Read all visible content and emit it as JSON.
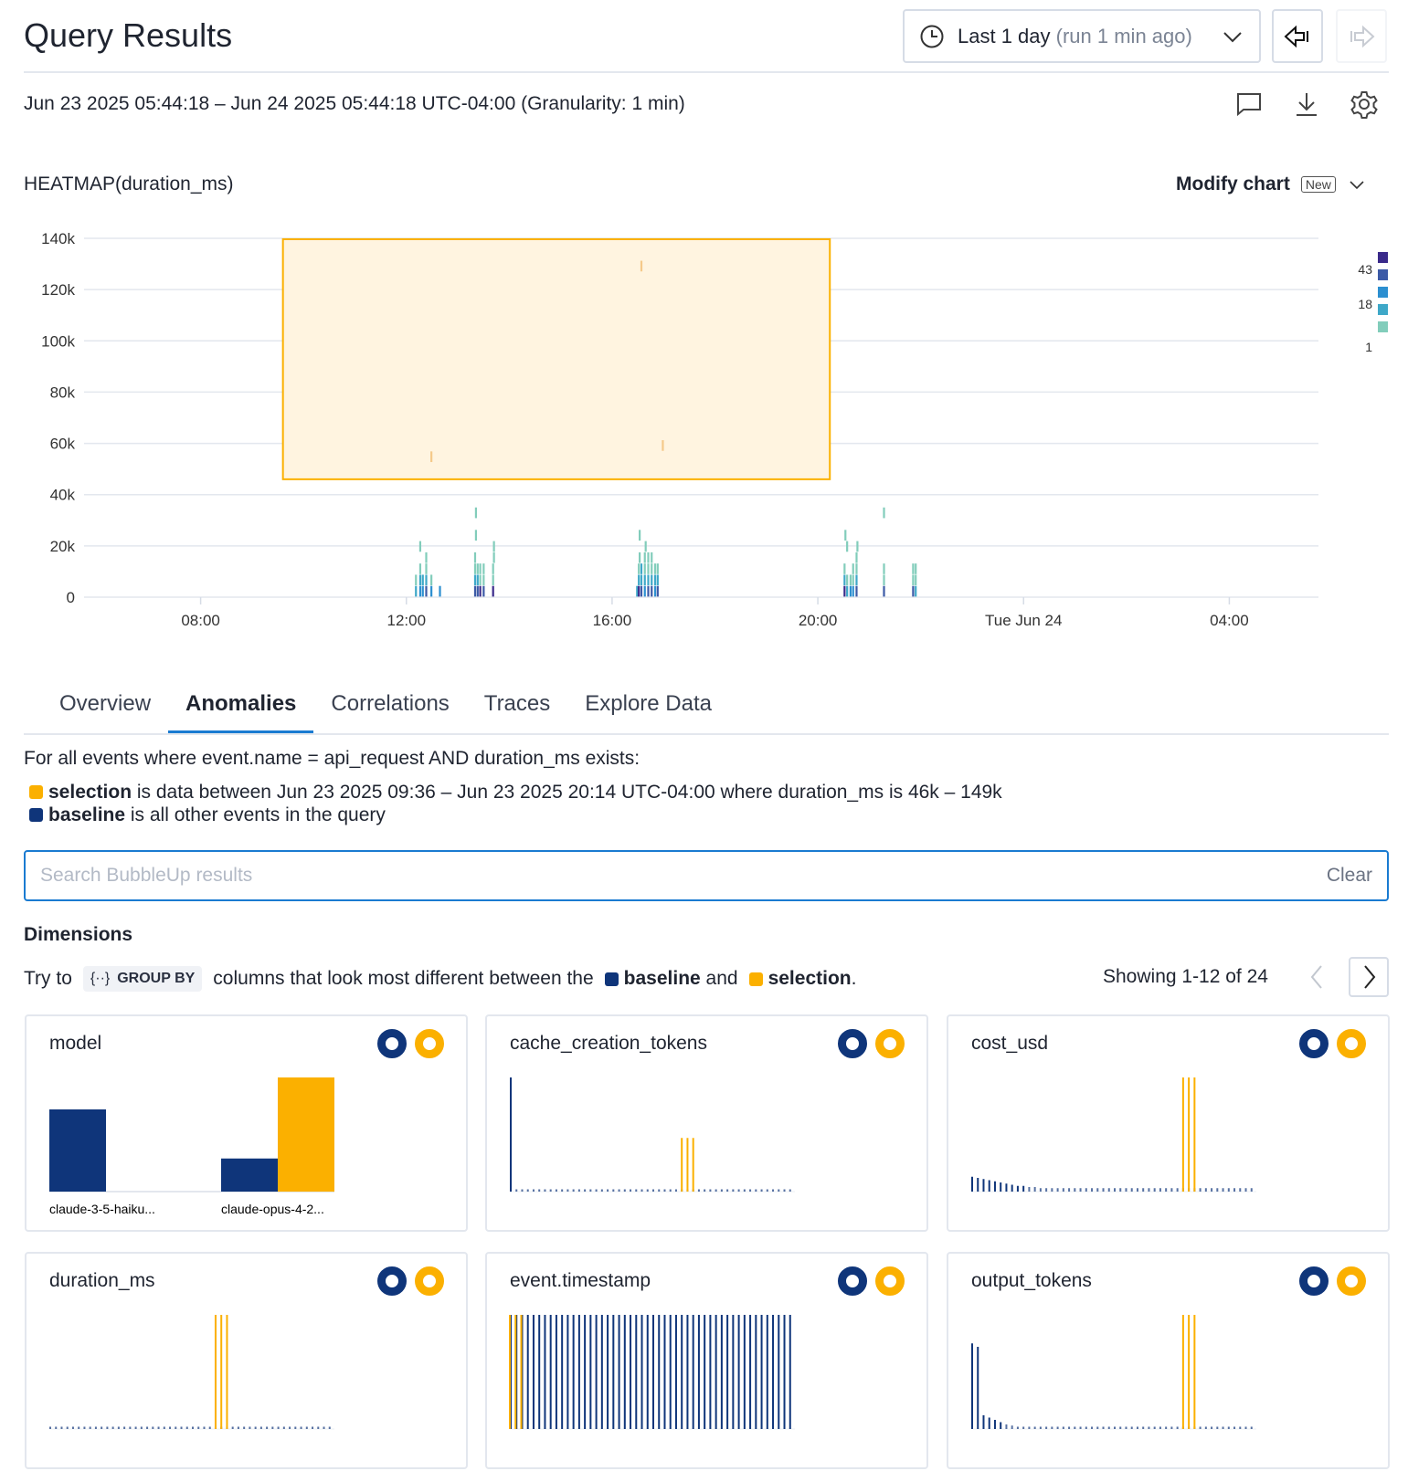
{
  "header": {
    "title": "Query Results",
    "time_range_label": "Last 1 day",
    "time_range_note": "(run 1 min ago)",
    "back_icon": "arrow-left-bar-icon",
    "forward_icon": "arrow-right-bar-icon"
  },
  "subheader": {
    "range_text": "Jun 23 2025 05:44:18 – Jun 24 2025 05:44:18 UTC-04:00 (Granularity: 1 min)",
    "icons": [
      "comment-icon",
      "download-icon",
      "gear-icon"
    ]
  },
  "chart_header": {
    "title": "HEATMAP(duration_ms)",
    "modify_label": "Modify chart",
    "new_badge": "New"
  },
  "colors": {
    "baseline": "#0f357a",
    "selection": "#fbb000",
    "accent": "#1a7bd1",
    "selection_fill": "#fff4e0"
  },
  "chart_data": {
    "type": "heatmap",
    "title": "HEATMAP(duration_ms)",
    "x_range": [
      "Jun 23 05:44",
      "Jun 24 05:44"
    ],
    "x_ticks": [
      {
        "t": "08:00",
        "label": "08:00"
      },
      {
        "t": "12:00",
        "label": "12:00"
      },
      {
        "t": "16:00",
        "label": "16:00"
      },
      {
        "t": "20:00",
        "label": "20:00"
      },
      {
        "t": "24:00",
        "label": "Tue Jun 24"
      },
      {
        "t": "28:00",
        "label": "04:00"
      }
    ],
    "y_range": [
      0,
      140000
    ],
    "y_ticks": [
      {
        "v": 0,
        "label": "0"
      },
      {
        "v": 20000,
        "label": "20k"
      },
      {
        "v": 40000,
        "label": "40k"
      },
      {
        "v": 60000,
        "label": "60k"
      },
      {
        "v": 80000,
        "label": "80k"
      },
      {
        "v": 100000,
        "label": "100k"
      },
      {
        "v": 120000,
        "label": "120k"
      },
      {
        "v": 140000,
        "label": "140k"
      }
    ],
    "grid": true,
    "bucket_ms": 4375,
    "legend": {
      "placement": "right",
      "labels": [
        "43",
        "18",
        "1"
      ],
      "colors": [
        "#3a2a8a",
        "#3c5aa6",
        "#2c8fd0",
        "#3ea8c8",
        "#82cdbb"
      ]
    },
    "selection": {
      "from": "09:36",
      "to": "20:14",
      "y_from": 46000,
      "y_to": 149000
    },
    "cells": [
      [
        "12:10",
        0,
        3
      ],
      [
        "12:10",
        1,
        1
      ],
      [
        "12:15",
        0,
        14
      ],
      [
        "12:15",
        1,
        4
      ],
      [
        "12:15",
        2,
        2
      ],
      [
        "12:15",
        4,
        1
      ],
      [
        "12:18",
        0,
        9
      ],
      [
        "12:18",
        1,
        3
      ],
      [
        "12:22",
        0,
        20
      ],
      [
        "12:22",
        1,
        4
      ],
      [
        "12:22",
        2,
        2
      ],
      [
        "12:22",
        3,
        1
      ],
      [
        "12:28",
        0,
        10
      ],
      [
        "12:28",
        1,
        2
      ],
      [
        "12:38",
        0,
        8
      ],
      [
        "12:28",
        12,
        1
      ],
      [
        "13:19",
        0,
        25
      ],
      [
        "13:19",
        1,
        3
      ],
      [
        "13:19",
        2,
        2
      ],
      [
        "13:19",
        3,
        1
      ],
      [
        "13:20",
        5,
        1
      ],
      [
        "13:20",
        7,
        1
      ],
      [
        "13:22",
        0,
        18
      ],
      [
        "13:22",
        1,
        3
      ],
      [
        "13:22",
        2,
        1
      ],
      [
        "13:25",
        0,
        35
      ],
      [
        "13:25",
        1,
        2
      ],
      [
        "13:25",
        2,
        2
      ],
      [
        "13:29",
        0,
        22
      ],
      [
        "13:29",
        1,
        2
      ],
      [
        "13:29",
        2,
        1
      ],
      [
        "13:40",
        0,
        30
      ],
      [
        "13:40",
        1,
        2
      ],
      [
        "13:40",
        2,
        2
      ],
      [
        "13:41",
        3,
        1
      ],
      [
        "13:41",
        4,
        1
      ],
      [
        "16:28",
        0,
        4
      ],
      [
        "16:30",
        0,
        30
      ],
      [
        "16:30",
        1,
        3
      ],
      [
        "16:30",
        2,
        2
      ],
      [
        "16:31",
        3,
        1
      ],
      [
        "16:31",
        5,
        1
      ],
      [
        "16:33",
        0,
        15
      ],
      [
        "16:33",
        1,
        4
      ],
      [
        "16:33",
        2,
        3
      ],
      [
        "16:33",
        29,
        1
      ],
      [
        "16:37",
        0,
        12
      ],
      [
        "16:37",
        1,
        4
      ],
      [
        "16:37",
        2,
        2
      ],
      [
        "16:37",
        3,
        1
      ],
      [
        "16:38",
        4,
        1
      ],
      [
        "16:41",
        0,
        18
      ],
      [
        "16:41",
        1,
        3
      ],
      [
        "16:41",
        2,
        2
      ],
      [
        "16:41",
        3,
        1
      ],
      [
        "16:45",
        0,
        22
      ],
      [
        "16:45",
        1,
        3
      ],
      [
        "16:45",
        2,
        2
      ],
      [
        "16:45",
        3,
        1
      ],
      [
        "16:49",
        0,
        10
      ],
      [
        "16:49",
        1,
        3
      ],
      [
        "16:49",
        2,
        2
      ],
      [
        "16:52",
        0,
        28
      ],
      [
        "16:52",
        1,
        3
      ],
      [
        "16:52",
        2,
        1
      ],
      [
        "16:58",
        13,
        1
      ],
      [
        "20:30",
        0,
        43
      ],
      [
        "20:30",
        1,
        3
      ],
      [
        "20:30",
        2,
        1
      ],
      [
        "20:31",
        5,
        1
      ],
      [
        "20:33",
        0,
        6
      ],
      [
        "20:33",
        1,
        2
      ],
      [
        "20:33",
        4,
        1
      ],
      [
        "20:37",
        0,
        8
      ],
      [
        "20:37",
        1,
        2
      ],
      [
        "20:40",
        0,
        10
      ],
      [
        "20:40",
        1,
        2
      ],
      [
        "20:40",
        2,
        1
      ],
      [
        "20:44",
        0,
        28
      ],
      [
        "20:44",
        1,
        3
      ],
      [
        "20:44",
        2,
        2
      ],
      [
        "20:44",
        3,
        1
      ],
      [
        "20:45",
        4,
        1
      ],
      [
        "21:16",
        0,
        20
      ],
      [
        "21:16",
        1,
        1
      ],
      [
        "21:16",
        2,
        1
      ],
      [
        "21:16",
        7,
        1
      ],
      [
        "21:50",
        0,
        22
      ],
      [
        "21:50",
        1,
        2
      ],
      [
        "21:50",
        2,
        1
      ],
      [
        "21:53",
        0,
        6
      ],
      [
        "21:53",
        1,
        2
      ],
      [
        "21:53",
        2,
        1
      ]
    ]
  },
  "tabs": [
    {
      "label": "Overview",
      "active": false
    },
    {
      "label": "Anomalies",
      "active": true
    },
    {
      "label": "Correlations",
      "active": false
    },
    {
      "label": "Traces",
      "active": false
    },
    {
      "label": "Explore Data",
      "active": false
    }
  ],
  "anomalies": {
    "filter_text": "For all events where event.name  =  api_request  AND  duration_ms  exists:",
    "selection_word": "selection",
    "selection_text": " is data between Jun 23 2025 09:36 – Jun 23 2025 20:14 UTC-04:00 where duration_ms is 46k – 149k",
    "baseline_word": "baseline",
    "baseline_text": " is all other events in the query",
    "search_placeholder": "Search BubbleUp results",
    "search_value": "",
    "clear_label": "Clear",
    "dimensions_title": "Dimensions",
    "try_to": "Try to",
    "group_by_icon": "{··}",
    "group_by_label": "GROUP BY",
    "try_mid": "columns that look most different between the",
    "and_word": " and",
    "period": ".",
    "showing": "Showing 1-12 of 24"
  },
  "cards": [
    {
      "name": "model",
      "type": "bar",
      "categories": [
        "claude-3-5-haiku...",
        "claude-opus-4-2..."
      ],
      "baseline": [
        0.72,
        0.29
      ],
      "selection": [
        0,
        1.0
      ]
    },
    {
      "name": "cache_creation_tokens",
      "type": "histogram",
      "baseline": [
        1,
        0.02,
        0.02,
        0.02,
        0.02,
        0.02,
        0.02,
        0.02,
        0.02,
        0.02,
        0.02,
        0.02,
        0.02,
        0.02,
        0.02,
        0.02,
        0.02,
        0.02,
        0.02,
        0.02,
        0.02,
        0.02,
        0.02,
        0.02,
        0.02,
        0.02,
        0.02,
        0.02,
        0.02,
        0.02,
        0.02,
        0.02,
        0.02,
        0.02,
        0.02,
        0.02,
        0.02,
        0.02,
        0.02,
        0.02,
        0.02,
        0.02,
        0.02,
        0.02,
        0.02,
        0.02,
        0.02,
        0.02,
        0.02,
        0.02
      ],
      "selection_bins": [
        30,
        31,
        32
      ],
      "selection_height": 0.47
    },
    {
      "name": "cost_usd",
      "type": "histogram",
      "baseline": [
        0.13,
        0.12,
        0.11,
        0.1,
        0.09,
        0.08,
        0.07,
        0.06,
        0.05,
        0.05,
        0.04,
        0.04,
        0.03,
        0.03,
        0.03,
        0.03,
        0.03,
        0.03,
        0.03,
        0.03,
        0.03,
        0.03,
        0.03,
        0.03,
        0.03,
        0.03,
        0.03,
        0.03,
        0.03,
        0.03,
        0.03,
        0.03,
        0.03,
        0.03,
        0.03,
        0.03,
        0.03,
        0.03,
        0.03,
        0.03,
        0.03,
        0.03,
        0.03,
        0.03,
        0.03,
        0.03,
        0.03,
        0.03,
        0.03,
        0.03
      ],
      "selection_bins": [
        37,
        38,
        39
      ],
      "selection_height": 1.0
    },
    {
      "name": "duration_ms",
      "type": "histogram",
      "baseline": [
        0.02,
        0.02,
        0.02,
        0.02,
        0.02,
        0.02,
        0.02,
        0.02,
        0.02,
        0.02,
        0.02,
        0.02,
        0.02,
        0.02,
        0.02,
        0.02,
        0.02,
        0.02,
        0.02,
        0.02,
        0.02,
        0.02,
        0.02,
        0.02,
        0.02,
        0.02,
        0.02,
        0.02,
        0.02,
        0.02,
        0.02,
        0.02,
        0.02,
        0.02,
        0.02,
        0.02,
        0.02,
        0.02,
        0.02,
        0.02,
        0.02,
        0.02,
        0.02,
        0.02,
        0.02,
        0.02,
        0.02,
        0.02,
        0.02,
        0.02
      ],
      "selection_bins": [
        29,
        30,
        31
      ],
      "selection_height": 1.0
    },
    {
      "name": "event.timestamp",
      "type": "histogram",
      "baseline": [
        1,
        1,
        1,
        1,
        1,
        1,
        1,
        1,
        1,
        1,
        1,
        1,
        1,
        1,
        1,
        1,
        1,
        1,
        1,
        1,
        1,
        1,
        1,
        1,
        1,
        1,
        1,
        1,
        1,
        1,
        1,
        1,
        1,
        1,
        1,
        1,
        1,
        1,
        1,
        1,
        1,
        1,
        1,
        1,
        1,
        1,
        1,
        1,
        1,
        1
      ],
      "selection_bins": [
        0,
        1,
        2
      ],
      "selection_height": 1.0
    },
    {
      "name": "output_tokens",
      "type": "histogram",
      "baseline": [
        0.75,
        0.72,
        0.12,
        0.1,
        0.08,
        0.06,
        0.04,
        0.03,
        0.02,
        0.02,
        0.02,
        0.02,
        0.02,
        0.02,
        0.02,
        0.02,
        0.02,
        0.02,
        0.02,
        0.02,
        0.02,
        0.02,
        0.02,
        0.02,
        0.02,
        0.02,
        0.02,
        0.02,
        0.02,
        0.02,
        0.02,
        0.02,
        0.02,
        0.02,
        0.02,
        0.02,
        0.02,
        0.02,
        0.02,
        0.02,
        0.02,
        0.02,
        0.02,
        0.02,
        0.02,
        0.02,
        0.02,
        0.02,
        0.02,
        0.02
      ],
      "selection_bins": [
        37,
        38,
        39
      ],
      "selection_height": 1.0
    }
  ]
}
